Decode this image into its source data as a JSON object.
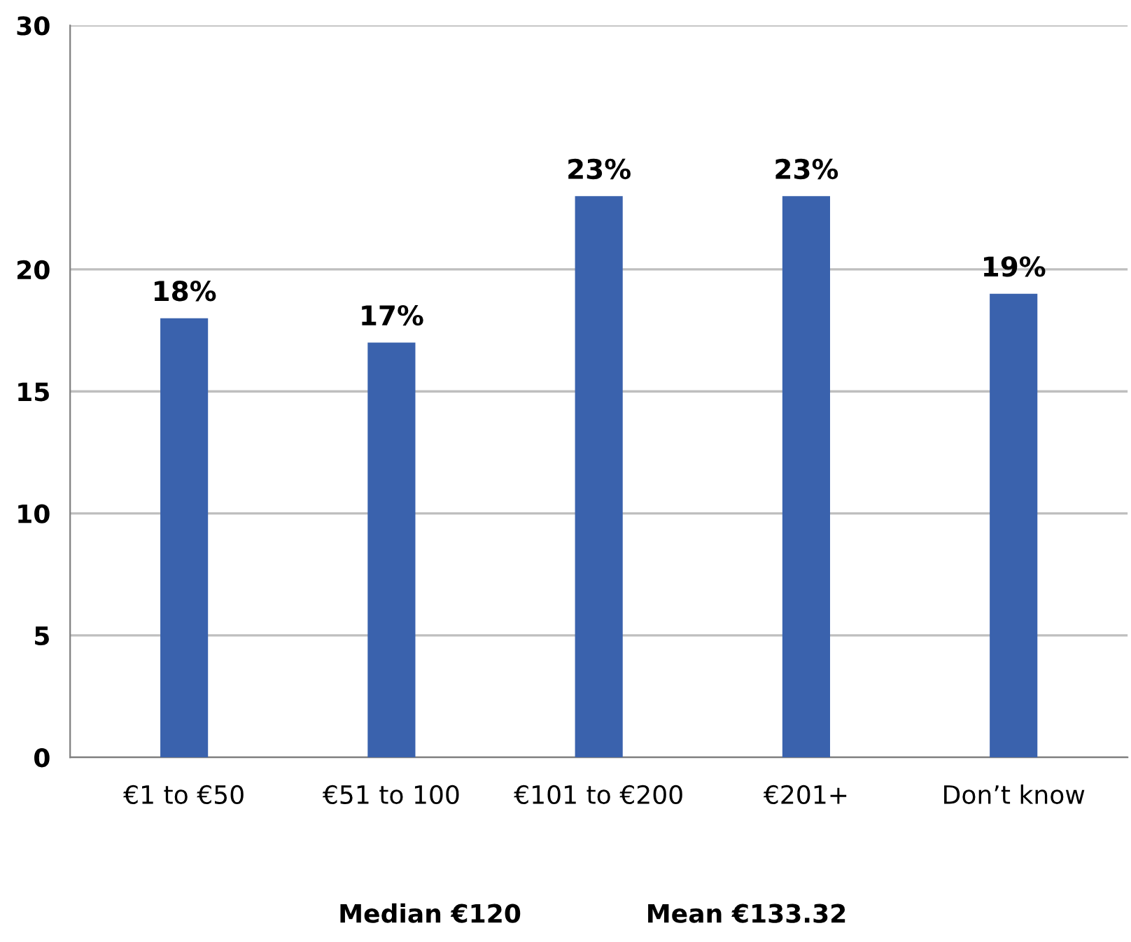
{
  "chart_data": {
    "type": "bar",
    "categories": [
      "€1 to €50",
      "€51 to 100",
      "€101 to €200",
      "€201+",
      "Don’t know"
    ],
    "values": [
      18,
      17,
      23,
      23,
      19
    ],
    "value_labels": [
      "18%",
      "17%",
      "23%",
      "23%",
      "19%"
    ],
    "color": "#3a62ad",
    "ylim": [
      0,
      30
    ],
    "yticks": [
      0,
      5,
      10,
      15,
      20,
      30
    ],
    "grid": "y",
    "legend": false,
    "annotations": [
      "Median €120",
      "Mean €133.32"
    ]
  }
}
